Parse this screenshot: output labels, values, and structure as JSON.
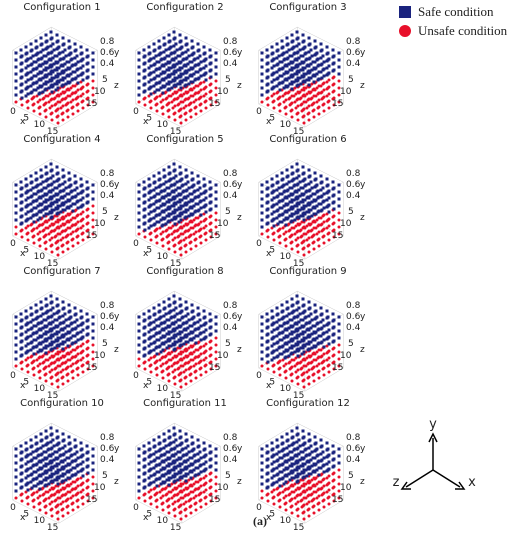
{
  "panels": [
    {
      "title": "Configuration 1"
    },
    {
      "title": "Configuration 2"
    },
    {
      "title": "Configuration 3"
    },
    {
      "title": "Configuration 4"
    },
    {
      "title": "Configuration 5"
    },
    {
      "title": "Configuration 6"
    },
    {
      "title": "Configuration 7"
    },
    {
      "title": "Configuration 8"
    },
    {
      "title": "Configuration 9"
    },
    {
      "title": "Configuration 10"
    },
    {
      "title": "Configuration 11"
    },
    {
      "title": "Configuration 12"
    }
  ],
  "axes": {
    "x_label": "x",
    "y_label": "y",
    "z_label": "z",
    "x_ticks": [
      "0",
      "5",
      "10",
      "15"
    ],
    "y_ticks": [
      "0.8",
      "0.6",
      "0.4"
    ],
    "z_ticks": [
      "5",
      "10",
      "15"
    ]
  },
  "legend": [
    {
      "label": "Safe condition",
      "color": "#1a237e"
    },
    {
      "label": "Unsafe condition",
      "color": "#e8102a"
    }
  ],
  "orientation": {
    "y": "y",
    "z": "z",
    "x": "x"
  },
  "caption": "(a)"
}
